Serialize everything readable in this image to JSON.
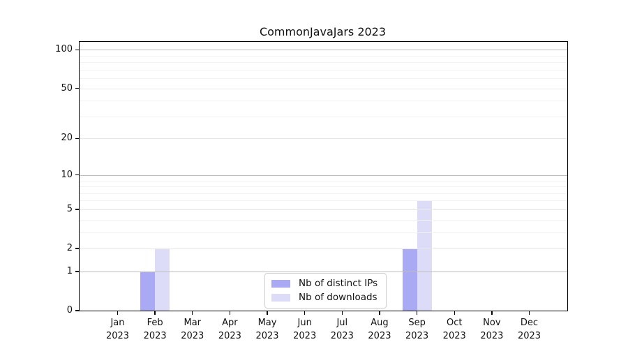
{
  "chart_data": {
    "type": "bar",
    "title": "CommonJavaJars 2023",
    "xlabel": "",
    "ylabel": "",
    "x_tick_year": "2023",
    "categories": [
      "Jan",
      "Feb",
      "Mar",
      "Apr",
      "May",
      "Jun",
      "Jul",
      "Aug",
      "Sep",
      "Oct",
      "Nov",
      "Dec"
    ],
    "series": [
      {
        "name": "Nb of distinct IPs",
        "color": "#a9a9f4",
        "values": [
          0,
          1,
          0,
          0,
          0,
          0,
          0,
          0,
          2,
          0,
          0,
          0
        ]
      },
      {
        "name": "Nb of downloads",
        "color": "#dcdcf8",
        "values": [
          0,
          2,
          0,
          0,
          0,
          0,
          0,
          0,
          6,
          0,
          0,
          0
        ]
      }
    ],
    "yscale": "log1p",
    "ylim": [
      0,
      115
    ],
    "yticks": [
      0,
      1,
      2,
      5,
      10,
      20,
      50,
      100
    ],
    "yticks_strong": [
      1,
      10,
      100
    ],
    "yticks_minor": [
      3,
      4,
      6,
      7,
      8,
      9,
      30,
      40,
      60,
      70,
      80,
      90
    ],
    "grid": "horizontal",
    "legend_position": "inside-bottom-center",
    "colors": {
      "background": "#ffffff",
      "axis_frame": "#000000",
      "grid_strong": "#bdbdbd",
      "grid_light": "#e7e7e7",
      "grid_minor": "#f2f2f2"
    }
  }
}
